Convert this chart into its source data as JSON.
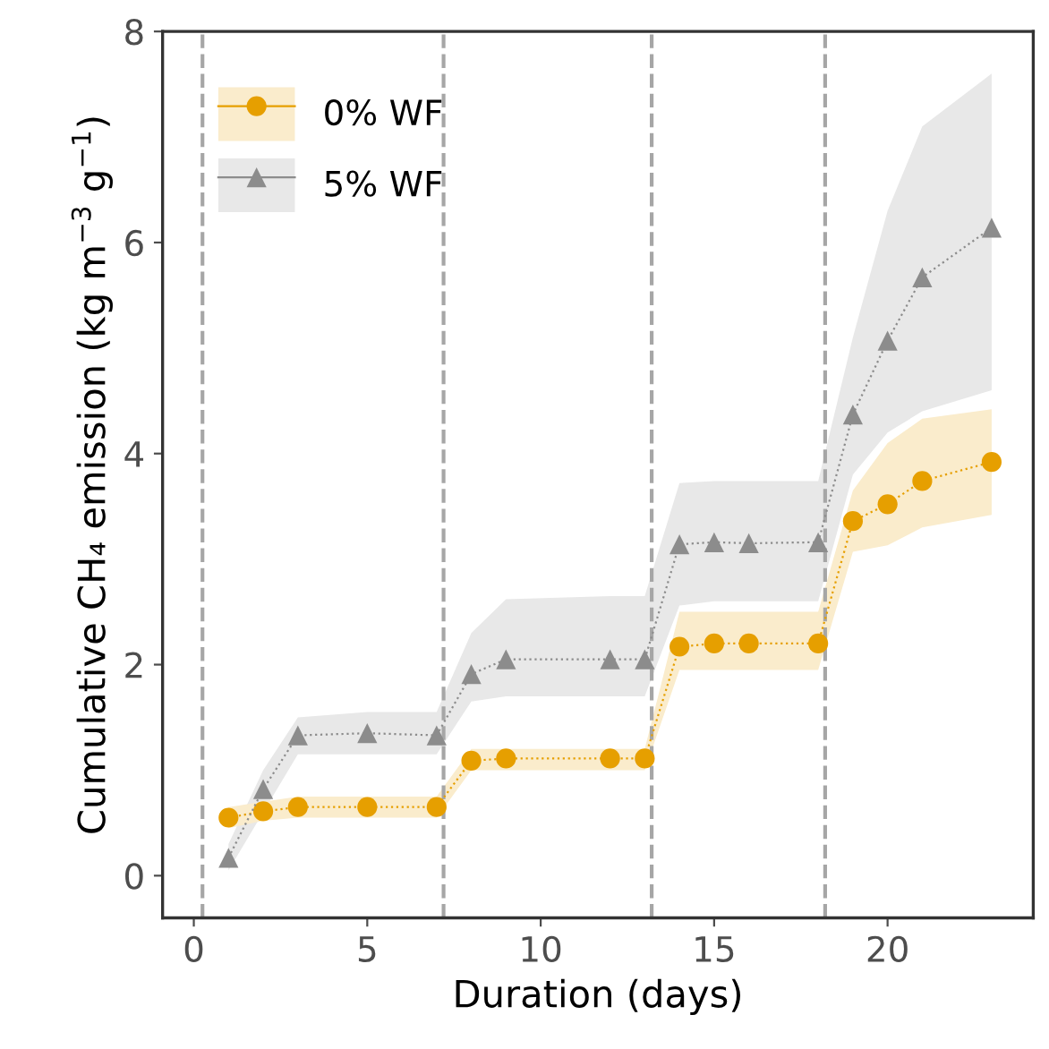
{
  "chart_data": {
    "type": "line",
    "xlabel": "Duration (days)",
    "ylabel": "Cumulative CH₄ emission (kg m$^{−3}$ g$^{−1}$)",
    "xlim": [
      -0.9,
      24.2
    ],
    "ylim": [
      -0.4,
      8
    ],
    "xticks": [
      0,
      5,
      10,
      15,
      20
    ],
    "yticks": [
      0,
      2,
      4,
      6,
      8
    ],
    "grid": false,
    "legend": "top left",
    "line_style": "dotted",
    "series": [
      {
        "name": "0% WF",
        "color": "#e69f00",
        "marker": "circle",
        "x": [
          1,
          2,
          3,
          5,
          7,
          8,
          9,
          12,
          13,
          14,
          15,
          16,
          18,
          19,
          20,
          21,
          23
        ],
        "values": [
          0.55,
          0.61,
          0.65,
          0.65,
          0.65,
          1.09,
          1.11,
          1.11,
          1.11,
          2.17,
          2.2,
          2.2,
          2.2,
          3.36,
          3.52,
          3.74,
          3.92
        ],
        "lower": [
          0.45,
          0.52,
          0.55,
          0.55,
          0.55,
          1.0,
          1.0,
          1.0,
          1.0,
          1.95,
          1.95,
          1.95,
          1.95,
          3.07,
          3.13,
          3.3,
          3.42
        ],
        "upper": [
          0.65,
          0.7,
          0.75,
          0.75,
          0.75,
          1.2,
          1.2,
          1.2,
          1.2,
          2.5,
          2.5,
          2.5,
          2.5,
          3.65,
          4.1,
          4.33,
          4.42
        ]
      },
      {
        "name": "5% WF",
        "color": "#8c8c8c",
        "marker": "triangle",
        "x": [
          1,
          2,
          3,
          5,
          7,
          8,
          9,
          12,
          13,
          14,
          15,
          16,
          18,
          19,
          20,
          21,
          23
        ],
        "values": [
          0.17,
          0.82,
          1.33,
          1.35,
          1.33,
          1.91,
          2.05,
          2.05,
          2.05,
          3.14,
          3.16,
          3.15,
          3.16,
          4.37,
          5.07,
          5.67,
          6.14
        ],
        "lower": [
          0.05,
          0.6,
          1.15,
          1.15,
          1.15,
          1.65,
          1.7,
          1.7,
          1.7,
          2.56,
          2.6,
          2.6,
          2.6,
          3.8,
          4.2,
          4.4,
          4.6
        ],
        "upper": [
          0.3,
          1.0,
          1.5,
          1.55,
          1.55,
          2.3,
          2.62,
          2.65,
          2.65,
          3.72,
          3.74,
          3.74,
          3.74,
          5.1,
          6.3,
          7.1,
          7.6
        ]
      }
    ],
    "ref_lines": [
      {
        "axis": "x",
        "value": 0.25,
        "color": "#a6a6a6",
        "line_style": "dashed"
      },
      {
        "axis": "x",
        "value": 7.2,
        "color": "#a6a6a6",
        "line_style": "dashed"
      },
      {
        "axis": "x",
        "value": 13.2,
        "color": "#a6a6a6",
        "line_style": "dashed"
      },
      {
        "axis": "x",
        "value": 18.2,
        "color": "#a6a6a6",
        "line_style": "dashed"
      }
    ]
  }
}
